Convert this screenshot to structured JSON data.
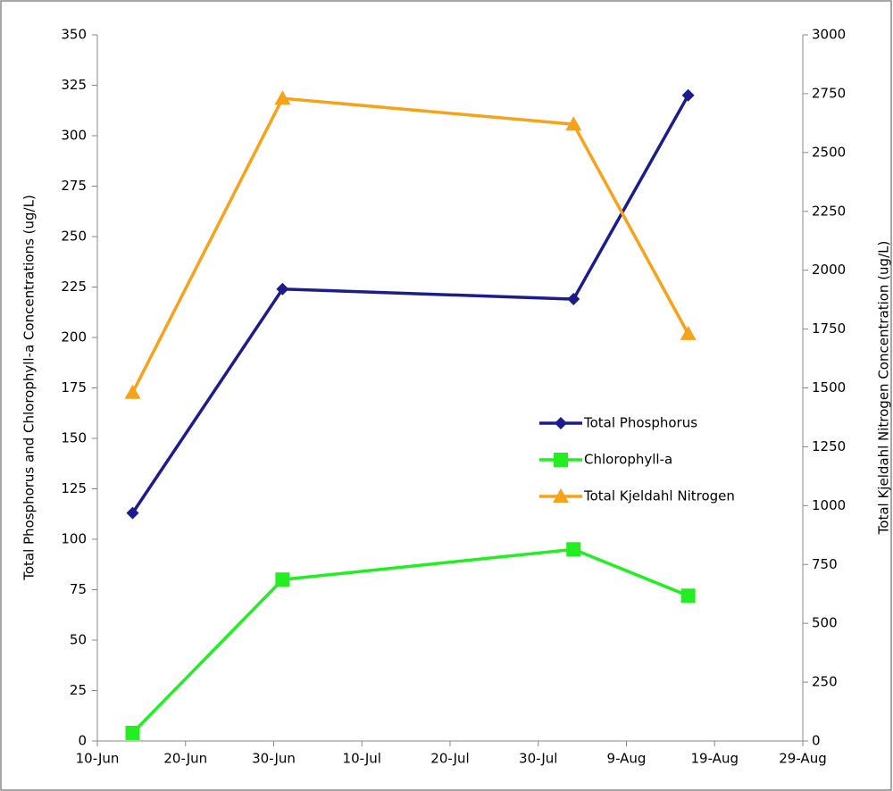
{
  "chart_data": {
    "type": "line",
    "x": [
      "14-Jun",
      "1-Jul",
      "3-Aug",
      "16-Aug"
    ],
    "xlim": [
      "10-Jun",
      "29-Aug"
    ],
    "xticks": [
      "10-Jun",
      "20-Jun",
      "30-Jun",
      "10-Jul",
      "20-Jul",
      "30-Jul",
      "9-Aug",
      "19-Aug",
      "29-Aug"
    ],
    "ylabel": "Total Phosphorus and Chlorophyll-a Concentrations (ug/L)",
    "y2label": "Total Kjeldahl Nitrogen Concentration (ug/L)",
    "ylim": [
      0,
      350
    ],
    "yticks": [
      0,
      25,
      50,
      75,
      100,
      125,
      150,
      175,
      200,
      225,
      250,
      275,
      300,
      325,
      350
    ],
    "y2lim": [
      0,
      3000
    ],
    "y2ticks": [
      0,
      250,
      500,
      750,
      1000,
      1250,
      1500,
      1750,
      2000,
      2250,
      2500,
      2750,
      3000
    ],
    "legend": "center-right",
    "series": [
      {
        "name": "Total Phosphorus",
        "color": "#1c1c8c",
        "marker": "diamond",
        "values": [
          113,
          224,
          219,
          320
        ]
      },
      {
        "name": "Chlorophyll-a",
        "color": "#22ee22",
        "marker": "square",
        "values": [
          4,
          80,
          95,
          72
        ]
      },
      {
        "name": "Total Kjeldahl Nitrogen",
        "color": "#f7a21b",
        "marker": "triangle",
        "axis": "y2",
        "values": [
          1480,
          2730,
          2620,
          1730
        ]
      }
    ]
  }
}
